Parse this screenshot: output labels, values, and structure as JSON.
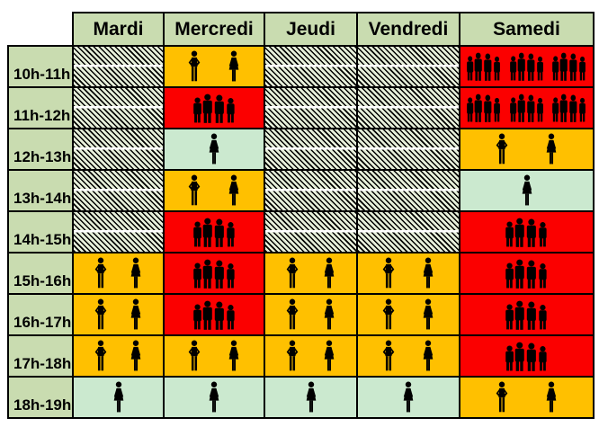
{
  "colors": {
    "header_green": "#c9dcb0",
    "mint": "#cbe9cf",
    "orange": "#ffc000",
    "red": "#fb0000",
    "hatch_bg": "#e6efd9",
    "border": "#000000",
    "icon_black": "#000000"
  },
  "grid": {
    "corner_label": "",
    "header": [
      "Mardi",
      "Mercredi",
      "Jeudi",
      "Vendredi",
      "Samedi"
    ],
    "rows": [
      {
        "label": "10h-11h",
        "cells": [
          "closed",
          "pair",
          "closed",
          "closed",
          "crowd3"
        ]
      },
      {
        "label": "11h-12h",
        "cells": [
          "closed",
          "crowd",
          "closed",
          "closed",
          "crowd3"
        ]
      },
      {
        "label": "12h-13h",
        "cells": [
          "closed",
          "single",
          "closed",
          "closed",
          "pair"
        ]
      },
      {
        "label": "13h-14h",
        "cells": [
          "closed",
          "pair",
          "closed",
          "closed",
          "single"
        ]
      },
      {
        "label": "14h-15h",
        "cells": [
          "closed",
          "crowd",
          "closed",
          "closed",
          "crowd"
        ]
      },
      {
        "label": "15h-16h",
        "cells": [
          "pair",
          "crowd",
          "pair",
          "pair",
          "crowd"
        ]
      },
      {
        "label": "16h-17h",
        "cells": [
          "pair",
          "crowd",
          "pair",
          "pair",
          "crowd"
        ]
      },
      {
        "label": "17h-18h",
        "cells": [
          "pair",
          "pair",
          "pair",
          "pair",
          "crowd"
        ]
      },
      {
        "label": "18h-19h",
        "cells": [
          "single",
          "single",
          "single",
          "single",
          "pair"
        ]
      }
    ],
    "cell_types": {
      "closed": {
        "bg": "hatch",
        "icons": []
      },
      "single": {
        "bg": "mint",
        "icons": [
          "woman-icon"
        ]
      },
      "pair": {
        "bg": "orange",
        "icons": [
          "man-icon",
          "woman-icon"
        ]
      },
      "crowd": {
        "bg": "red",
        "icons": [
          "group-icon"
        ]
      },
      "crowd3": {
        "bg": "red",
        "icons": [
          "group-icon",
          "group-icon",
          "group-icon"
        ]
      }
    }
  },
  "chart_data": {
    "type": "heatmap",
    "title": "",
    "columns": [
      "Mardi",
      "Mercredi",
      "Jeudi",
      "Vendredi",
      "Samedi"
    ],
    "rows": [
      "10h-11h",
      "11h-12h",
      "12h-13h",
      "13h-14h",
      "14h-15h",
      "15h-16h",
      "16h-17h",
      "17h-18h",
      "18h-19h"
    ],
    "values": [
      [
        "closed",
        "pair",
        "closed",
        "closed",
        "crowd3"
      ],
      [
        "closed",
        "crowd",
        "closed",
        "closed",
        "crowd3"
      ],
      [
        "closed",
        "single",
        "closed",
        "closed",
        "pair"
      ],
      [
        "closed",
        "pair",
        "closed",
        "closed",
        "single"
      ],
      [
        "closed",
        "crowd",
        "closed",
        "closed",
        "crowd"
      ],
      [
        "pair",
        "crowd",
        "pair",
        "pair",
        "crowd"
      ],
      [
        "pair",
        "crowd",
        "pair",
        "pair",
        "crowd"
      ],
      [
        "pair",
        "pair",
        "pair",
        "pair",
        "crowd"
      ],
      [
        "single",
        "single",
        "single",
        "single",
        "pair"
      ]
    ],
    "value_legend": {
      "closed": "black diagonal hatch - closed / no data",
      "single": "light green cell with one person pictogram - very quiet",
      "pair": "orange cell with man and woman pictograms - moderate",
      "crowd": "red cell with one crowd pictogram - busy",
      "crowd3": "red cell with three crowd pictograms - very busy"
    },
    "legend_position": "none",
    "grid_lines": "black 2px borders around every cell"
  }
}
